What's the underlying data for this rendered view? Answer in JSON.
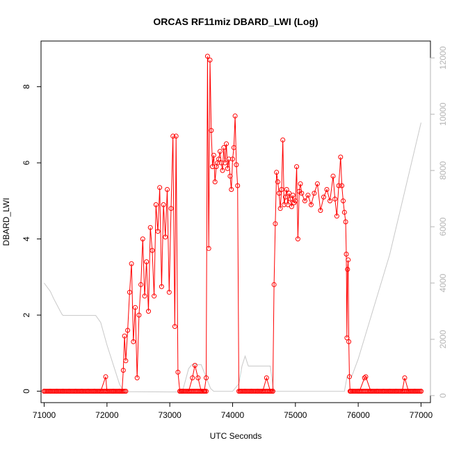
{
  "chart_data": {
    "type": "line",
    "title": "ORCAS RF11miz DBARD_LWI (Log)",
    "xlabel": "UTC Seconds",
    "ylabel": "DBARD_LWI",
    "xlim": [
      70950,
      77150
    ],
    "ylim": [
      -0.3,
      9.2
    ],
    "xticks": [
      71000,
      72000,
      73000,
      74000,
      75000,
      76000,
      77000
    ],
    "yticks": [
      0,
      2,
      4,
      6,
      8
    ],
    "y2lim": [
      -250,
      12600
    ],
    "y2ticks": [
      0,
      2000,
      4000,
      6000,
      8000,
      10000,
      12000
    ],
    "y2_color": "#b4b4b4",
    "series_color": "#ff0000",
    "series": [
      {
        "marker": "open-circle",
        "x": [
          71000,
          71100,
          71200,
          71300,
          71400,
          71500,
          71600,
          71700,
          71800,
          71900,
          71980,
          72000,
          72100,
          72200,
          72240,
          72260,
          72280,
          72300,
          72330,
          72360,
          72390,
          72420,
          72450,
          72480,
          72510,
          72540,
          72570,
          72600,
          72630,
          72660,
          72690,
          72720,
          72750,
          72780,
          72810,
          72840,
          72870,
          72900,
          72930,
          72960,
          72990,
          73020,
          73050,
          73080,
          73100,
          73130,
          73160,
          73180,
          73200,
          73300,
          73360,
          73400,
          73450,
          73500,
          73550,
          73580,
          73600,
          73620,
          73640,
          73660,
          73680,
          73700,
          73720,
          73740,
          73760,
          73780,
          73800,
          73820,
          73840,
          73860,
          73880,
          73900,
          73920,
          73940,
          73960,
          73980,
          74000,
          74020,
          74040,
          74060,
          74080,
          74100,
          74120,
          74200,
          74300,
          74400,
          74480,
          74540,
          74600,
          74640,
          74660,
          74680,
          74700,
          74720,
          74740,
          74760,
          74780,
          74800,
          74820,
          74840,
          74860,
          74880,
          74900,
          74920,
          74940,
          74960,
          74980,
          75000,
          75020,
          75040,
          75060,
          75080,
          75100,
          75150,
          75200,
          75250,
          75300,
          75350,
          75400,
          75450,
          75500,
          75550,
          75600,
          75630,
          75660,
          75690,
          75720,
          75740,
          75760,
          75780,
          75800,
          75810,
          75820,
          75830,
          75840,
          75850,
          75860,
          75870,
          75880,
          75900,
          76000,
          76020,
          76100,
          76120,
          76200,
          76300,
          76400,
          76500,
          76600,
          76700,
          76740,
          76800,
          76900,
          77000
        ],
        "y": [
          0,
          0,
          0,
          0,
          0,
          0,
          0,
          0,
          0,
          0,
          0.38,
          0,
          0,
          0,
          0,
          0.55,
          1.45,
          0.8,
          1.6,
          2.6,
          3.35,
          1.3,
          2.2,
          0.35,
          2.0,
          2.8,
          4.0,
          2.5,
          3.4,
          2.1,
          4.3,
          3.7,
          2.5,
          4.9,
          4.2,
          5.35,
          2.75,
          4.9,
          4.05,
          5.3,
          2.6,
          4.8,
          6.7,
          1.7,
          6.7,
          0.5,
          0,
          0,
          0,
          0,
          0.35,
          0.68,
          0.35,
          0,
          0,
          0.35,
          8.8,
          3.75,
          8.7,
          6.85,
          5.9,
          6.2,
          5.5,
          5.9,
          6.0,
          6.1,
          6.3,
          6.0,
          5.8,
          6.4,
          6.0,
          6.5,
          5.85,
          6.1,
          5.65,
          5.3,
          6.1,
          6.4,
          7.23,
          5.95,
          5.4,
          0,
          0,
          0,
          0,
          0,
          0,
          0.35,
          0,
          0,
          2.8,
          4.4,
          5.75,
          5.5,
          5.2,
          4.8,
          5.3,
          6.6,
          4.9,
          5.1,
          5.3,
          4.9,
          5.2,
          5.05,
          4.85,
          5.15,
          4.95,
          5.0,
          5.9,
          4.0,
          5.25,
          5.45,
          5.2,
          5.0,
          5.15,
          4.9,
          5.2,
          5.45,
          4.75,
          5.1,
          5.3,
          5.0,
          5.65,
          5.05,
          4.6,
          5.4,
          6.15,
          5.4,
          5.0,
          4.7,
          4.45,
          3.6,
          1.4,
          3.2,
          3.45,
          1.3,
          0.38,
          0,
          0,
          0,
          0,
          0,
          0.35,
          0.38,
          0,
          0,
          0,
          0,
          0,
          0,
          0.35,
          0,
          0,
          0
        ]
      },
      {
        "name": "",
        "axis": "right",
        "color": "#c8c8c8",
        "x": [
          71000,
          71100,
          71150,
          71280,
          71300,
          71500,
          71820,
          71900,
          72000,
          72200,
          72250,
          72270,
          72280,
          73000,
          73100,
          73200,
          73300,
          73350,
          73380,
          73500,
          73650,
          73700,
          73800,
          74000,
          74100,
          74150,
          74200,
          74250,
          74350,
          74500,
          74600,
          74650,
          74660,
          74700,
          75000,
          75500,
          75780,
          75820,
          75850,
          75900,
          76000,
          76500,
          77000
        ],
        "y": [
          4000,
          3700,
          3450,
          2900,
          2850,
          2850,
          2850,
          2600,
          1800,
          400,
          220,
          170,
          140,
          130,
          130,
          130,
          960,
          1100,
          1100,
          1100,
          250,
          150,
          150,
          150,
          420,
          1050,
          1400,
          1050,
          1050,
          1050,
          1050,
          230,
          150,
          150,
          150,
          150,
          150,
          650,
          660,
          700,
          1300,
          5000,
          9700
        ]
      }
    ]
  }
}
